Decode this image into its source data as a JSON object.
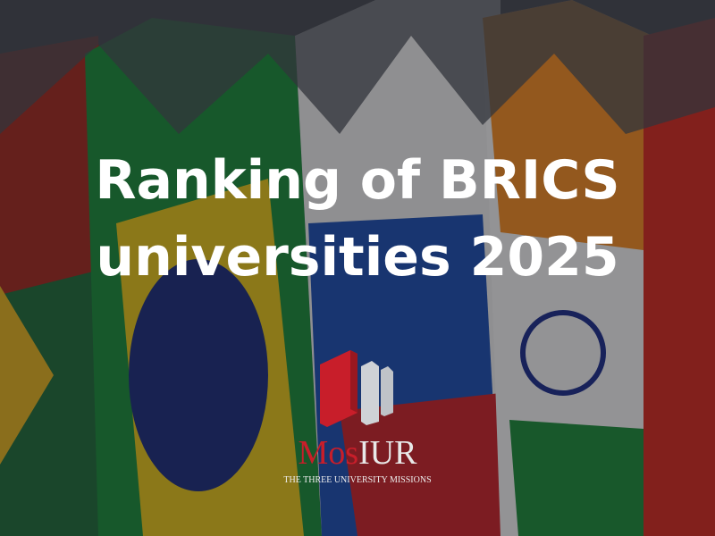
{
  "title": {
    "line1": "Ranking of BRICS",
    "line2": "universities 2025"
  },
  "logo": {
    "brand_part1": "Mos",
    "brand_part2": "IUR",
    "tagline": "THE THREE UNIVERSITY MISSIONS"
  },
  "colors": {
    "brand_red": "#c81e2a",
    "text": "#ffffff"
  }
}
